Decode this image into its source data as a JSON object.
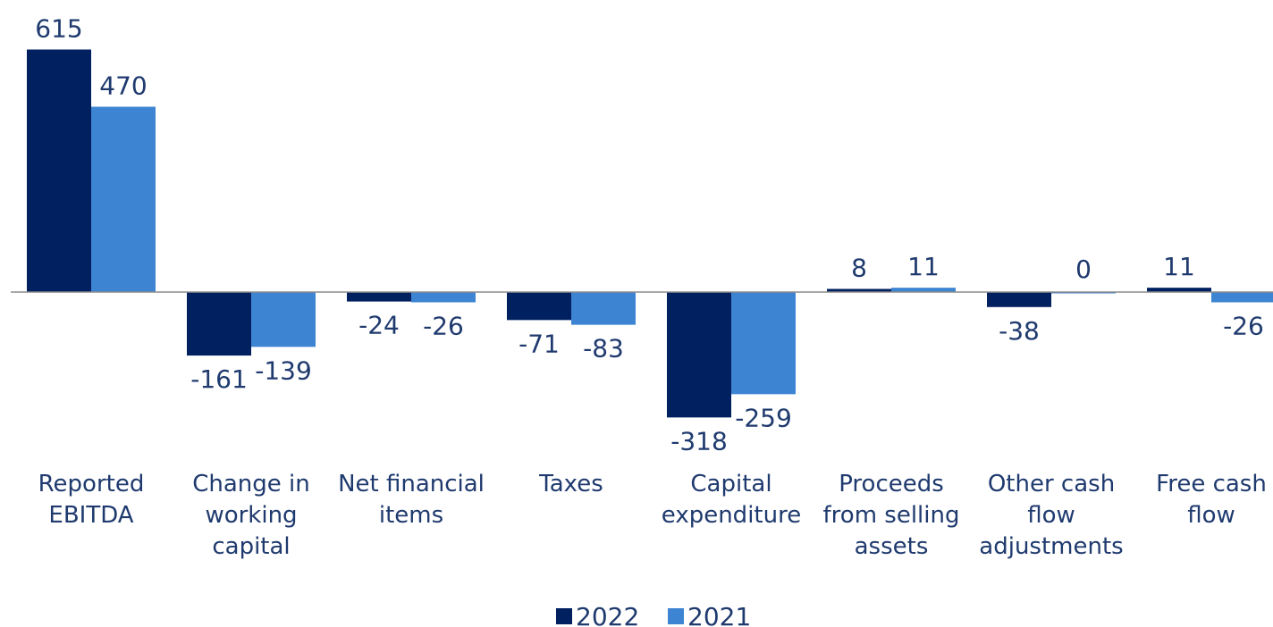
{
  "chart_data": {
    "type": "bar",
    "categories": [
      [
        "Reported",
        "EBITDA"
      ],
      [
        "Change in",
        "working",
        "capital"
      ],
      [
        "Net financial",
        "items"
      ],
      [
        "Taxes"
      ],
      [
        "Capital",
        "expenditure"
      ],
      [
        "Proceeds",
        "from selling",
        "assets"
      ],
      [
        "Other cash",
        "flow",
        "adjustments"
      ],
      [
        "Free cash",
        "flow"
      ]
    ],
    "series": [
      {
        "name": "2022",
        "color": "#002060",
        "values": [
          615,
          -161,
          -24,
          -71,
          -318,
          8,
          -38,
          11
        ],
        "labels": [
          "615",
          "-161",
          "-24",
          "-71",
          "-318",
          "8",
          "-38",
          "11"
        ]
      },
      {
        "name": "2021",
        "color": "#3d85d3",
        "values": [
          470,
          -139,
          -26,
          -83,
          -259,
          11,
          0,
          -26
        ],
        "labels": [
          "470",
          "-139",
          "-26",
          "-83",
          "-259",
          "11",
          "0",
          "-26"
        ]
      }
    ],
    "title": "",
    "xlabel": "",
    "ylabel": "",
    "grid": false,
    "legend_position": "bottom-center",
    "axis_color": "#8c8c8c",
    "label_color": "#1f3a6e"
  }
}
